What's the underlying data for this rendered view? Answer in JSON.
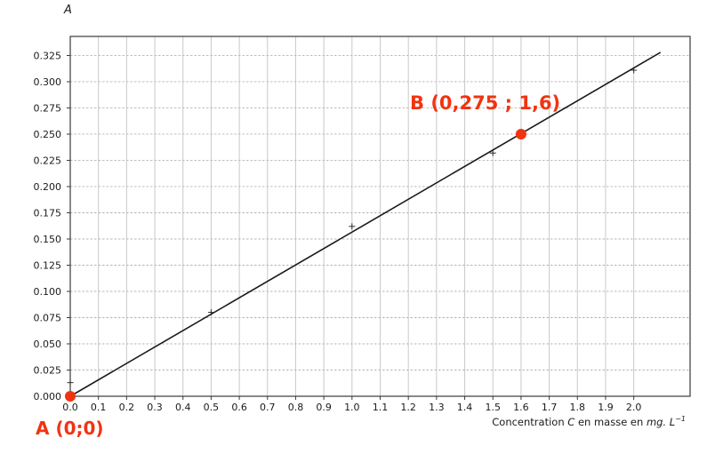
{
  "chart_data": {
    "type": "scatter",
    "ylabel": "A",
    "xlabel_parts": [
      "Concentration ",
      "C",
      " en masse en ",
      "mg. L",
      "−1"
    ],
    "xlabel_plain": "Concentration C en masse en mg. L-1",
    "xlim": [
      0,
      2.2
    ],
    "ylim": [
      0,
      0.3432
    ],
    "x_tick_values": [
      0.0,
      0.1,
      0.2,
      0.3,
      0.4,
      0.5,
      0.6,
      0.7,
      0.8,
      0.9,
      1.0,
      1.1,
      1.2,
      1.3,
      1.4,
      1.5,
      1.6,
      1.7,
      1.8,
      1.9,
      2.0
    ],
    "x_tick_labels": [
      "0.0",
      "0.1",
      "0.2",
      "0.3",
      "0.4",
      "0.5",
      "0.6",
      "0.7",
      "0.8",
      "0.9",
      "1.0",
      "1.1",
      "1.2",
      "1.3",
      "1.4",
      "1.5",
      "1.6",
      "1.7",
      "1.8",
      "1.9",
      "2.0"
    ],
    "y_tick_values": [
      0.0,
      0.025,
      0.05,
      0.075,
      0.1,
      0.125,
      0.15,
      0.175,
      0.2,
      0.225,
      0.25,
      0.275,
      0.3,
      0.325
    ],
    "y_tick_labels": [
      "0.000",
      "0.025",
      "0.050",
      "0.075",
      "0.100",
      "0.125",
      "0.150",
      "0.175",
      "0.200",
      "0.225",
      "0.250",
      "0.275",
      "0.300",
      "0.325"
    ],
    "grid": true,
    "points": [
      {
        "x": 0.0,
        "y": 0.013
      },
      {
        "x": 0.5,
        "y": 0.08
      },
      {
        "x": 1.0,
        "y": 0.162
      },
      {
        "x": 1.5,
        "y": 0.232
      },
      {
        "x": 2.0,
        "y": 0.311
      }
    ],
    "fit_line": {
      "x_start": 0,
      "y_start": 0,
      "x_end": 2.095,
      "y_end": 0.328
    },
    "annotations": [
      {
        "name": "A",
        "text": "A (0;0)",
        "x": 0.0,
        "y": 0.0
      },
      {
        "name": "B",
        "text": "B (0,275 ; 1,6)",
        "x": 1.6,
        "y": 0.25
      }
    ]
  },
  "colors": {
    "accent_red": "#f23310",
    "line": "#1a1a1a",
    "marker": "#2b2b2b",
    "frame": "#3a3a3a",
    "grid_vertical": "#c9c9c9",
    "grid_horizontal": "#b5b5b5",
    "tick_text": "#1a1a1a"
  }
}
